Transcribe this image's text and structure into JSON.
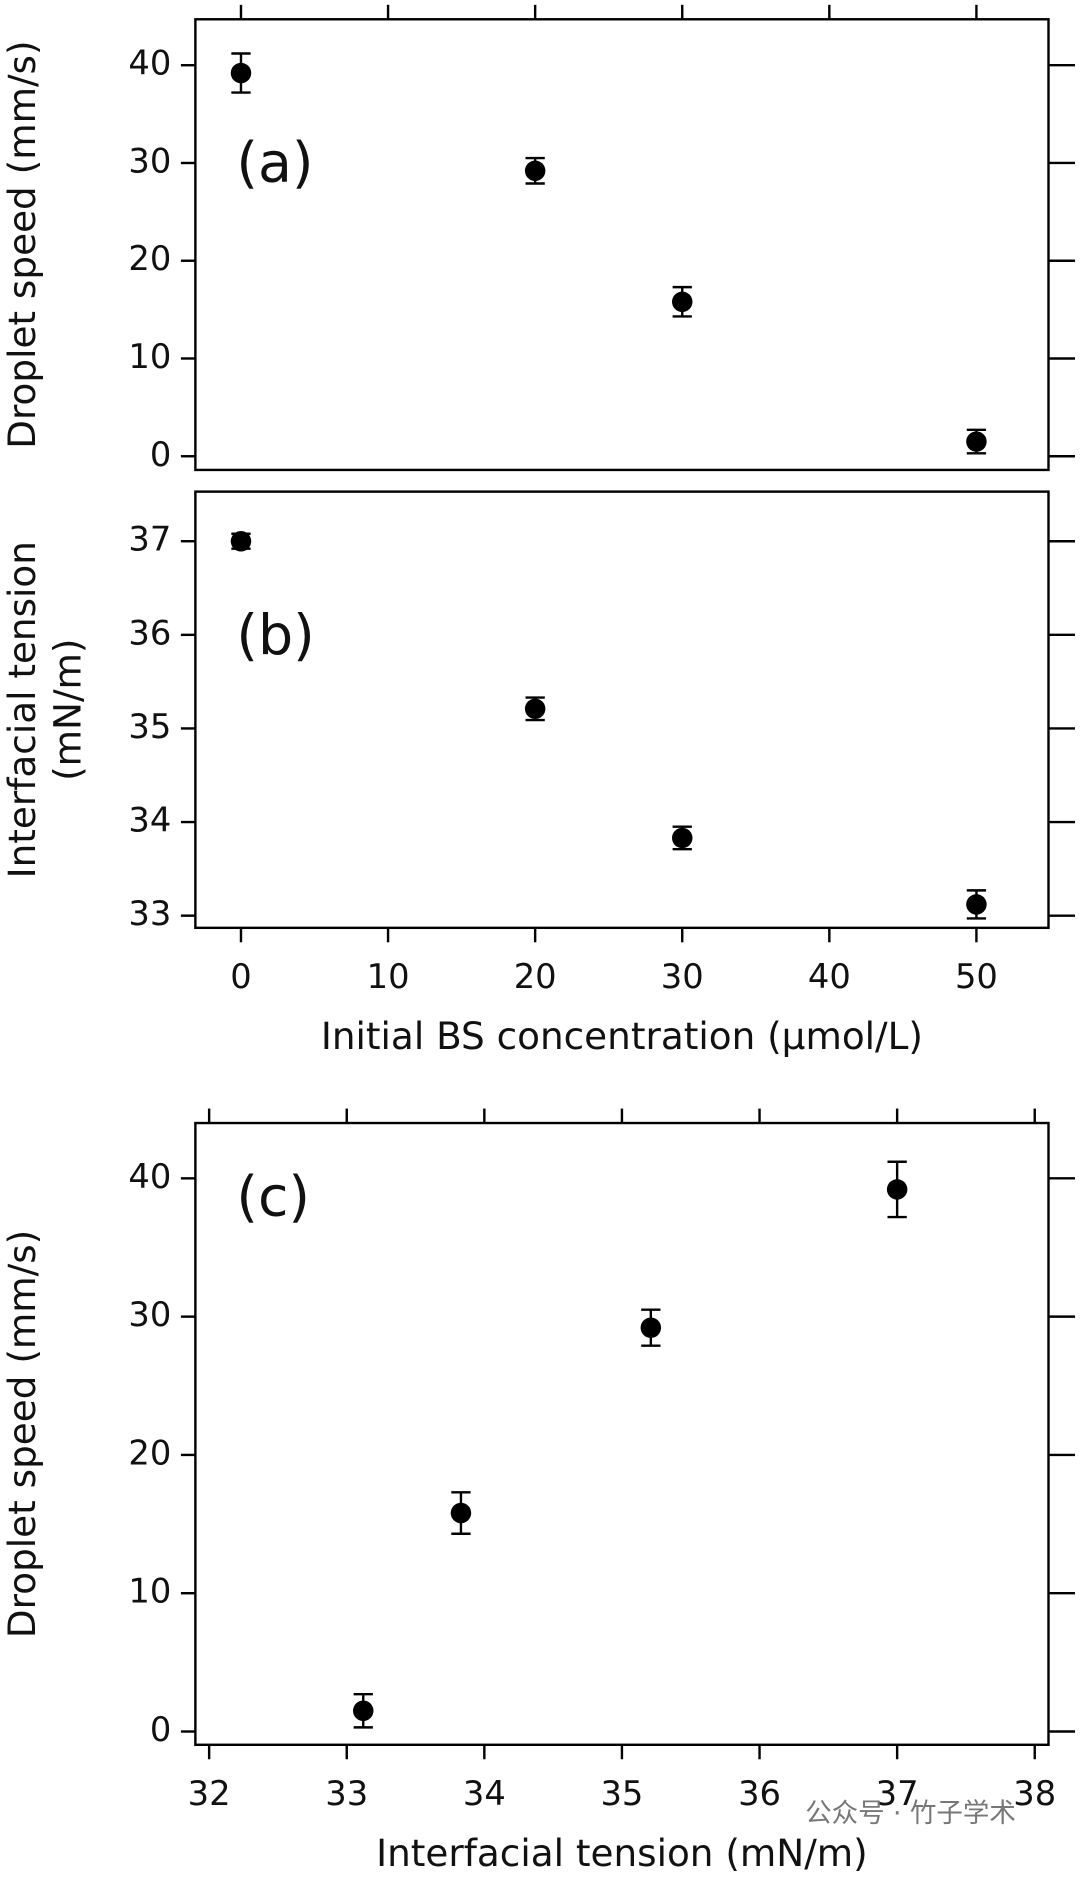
{
  "chart_data": [
    {
      "type": "scatter",
      "panel_label": "(a)",
      "ylabel": [
        "Droplet speed (mm/s)"
      ],
      "x": [
        0,
        20,
        30,
        50
      ],
      "series": [
        {
          "color": "#000000",
          "values": [
            39.2,
            29.2,
            15.8,
            1.5
          ],
          "errors": [
            2.0,
            1.3,
            1.5,
            1.2
          ]
        }
      ],
      "xlim": [
        -3.1,
        54.9
      ],
      "xticks": [
        0,
        10,
        20,
        30,
        40,
        50
      ],
      "ylim": [
        -1.4,
        44.7
      ],
      "yticks": [
        0,
        10,
        20,
        30,
        40
      ]
    },
    {
      "type": "scatter",
      "panel_label": "(b)",
      "ylabel": [
        "Interfacial tension",
        "(mN/m)"
      ],
      "xlabel": "Initial BS concentration (μmol/L)",
      "x": [
        0,
        20,
        30,
        50
      ],
      "series": [
        {
          "color": "#000000",
          "values": [
            37.0,
            35.21,
            33.83,
            33.12
          ],
          "errors": [
            0.08,
            0.12,
            0.12,
            0.15
          ]
        }
      ],
      "xlim": [
        -3.1,
        54.9
      ],
      "xticks": [
        0,
        10,
        20,
        30,
        40,
        50
      ],
      "ylim": [
        32.87,
        37.53
      ],
      "yticks": [
        33,
        34,
        35,
        36,
        37
      ]
    },
    {
      "type": "scatter",
      "panel_label": "(c)",
      "ylabel": [
        "Droplet speed (mm/s)"
      ],
      "xlabel": "Interfacial tension (mN/m)",
      "x": [
        33.12,
        33.83,
        35.21,
        37.0
      ],
      "series": [
        {
          "color": "#000000",
          "values": [
            1.5,
            15.8,
            29.2,
            39.2
          ],
          "errors": [
            1.2,
            1.5,
            1.3,
            2.0
          ]
        }
      ],
      "xlim": [
        31.9,
        38.1
      ],
      "xticks": [
        32,
        33,
        34,
        35,
        36,
        37,
        38
      ],
      "ylim": [
        -0.96,
        44.0
      ],
      "yticks": [
        0,
        10,
        20,
        30,
        40
      ],
      "watermark": "公众号 · 竹子学术"
    }
  ]
}
